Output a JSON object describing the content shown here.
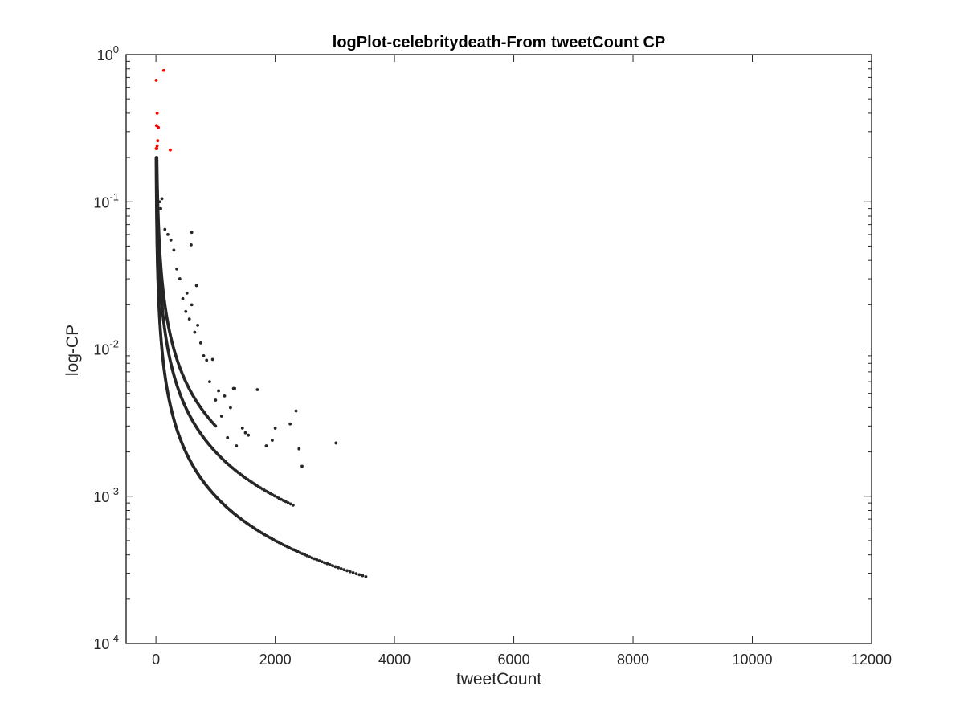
{
  "chart_data": {
    "type": "scatter",
    "title": "logPlot-celebritydeath-From tweetCount CP",
    "xlabel": "tweetCount",
    "ylabel": "log-CP",
    "xlim": [
      -500,
      12000
    ],
    "ylim": [
      0.0001,
      1
    ],
    "y_scale": "log",
    "grid": false,
    "x_ticks": [
      0,
      2000,
      4000,
      6000,
      8000,
      10000,
      12000
    ],
    "x_tick_labels": [
      "0",
      "2000",
      "4000",
      "6000",
      "8000",
      "10000",
      "12000"
    ],
    "y_ticks": [
      0.0001,
      0.001,
      0.01,
      0.1,
      1
    ],
    "y_tick_labels": [
      {
        "base": "10",
        "exp": "-4"
      },
      {
        "base": "10",
        "exp": "-3"
      },
      {
        "base": "10",
        "exp": "-2"
      },
      {
        "base": "10",
        "exp": "-1"
      },
      {
        "base": "10",
        "exp": "0"
      }
    ],
    "colors": {
      "highlight": "#ff0000",
      "points": "#262626",
      "axes": "#262626"
    },
    "series": [
      {
        "color": "#ff0000",
        "points": [
          [
            130,
            0.78
          ],
          [
            5,
            0.67
          ],
          [
            20,
            0.4
          ],
          [
            10,
            0.33
          ],
          [
            40,
            0.32
          ],
          [
            30,
            0.26
          ],
          [
            20,
            0.24
          ],
          [
            15,
            0.23
          ],
          [
            5,
            0.23
          ],
          [
            240,
            0.225
          ]
        ]
      },
      {
        "color": "#262626",
        "curves": [
          {
            "k": 1.0,
            "x_from": 5,
            "x_to": 3520,
            "n": 420
          },
          {
            "k": 2.0,
            "x_from": 10,
            "x_to": 2300,
            "n": 300
          },
          {
            "k": 3.0,
            "x_from": 15,
            "x_to": 1000,
            "n": 200
          }
        ],
        "points": [
          [
            600,
            0.062
          ],
          [
            590,
            0.051
          ],
          [
            680,
            0.027
          ],
          [
            520,
            0.024
          ],
          [
            600,
            0.02
          ],
          [
            700,
            0.0145
          ],
          [
            850,
            0.0084
          ],
          [
            950,
            0.0085
          ],
          [
            1300,
            0.0054
          ],
          [
            1320,
            0.0054
          ],
          [
            1700,
            0.0053
          ],
          [
            2350,
            0.0038
          ],
          [
            1250,
            0.004
          ],
          [
            1450,
            0.0029
          ],
          [
            1500,
            0.0027
          ],
          [
            1550,
            0.0026
          ],
          [
            1200,
            0.0025
          ],
          [
            1350,
            0.0022
          ],
          [
            1850,
            0.0022
          ],
          [
            2000,
            0.0029
          ],
          [
            2250,
            0.0031
          ],
          [
            2400,
            0.0021
          ],
          [
            2450,
            0.0016
          ],
          [
            3020,
            0.0023
          ],
          [
            1100,
            0.0035
          ],
          [
            1000,
            0.0045
          ],
          [
            900,
            0.006
          ],
          [
            800,
            0.009
          ],
          [
            750,
            0.011
          ],
          [
            650,
            0.013
          ],
          [
            560,
            0.016
          ],
          [
            500,
            0.018
          ],
          [
            450,
            0.022
          ],
          [
            400,
            0.03
          ],
          [
            350,
            0.035
          ],
          [
            300,
            0.047
          ],
          [
            250,
            0.055
          ],
          [
            200,
            0.06
          ],
          [
            150,
            0.065
          ],
          [
            100,
            0.105
          ],
          [
            80,
            0.09
          ],
          [
            60,
            0.1
          ],
          [
            1050,
            0.0052
          ],
          [
            1150,
            0.0048
          ],
          [
            1950,
            0.0024
          ]
        ]
      }
    ]
  }
}
